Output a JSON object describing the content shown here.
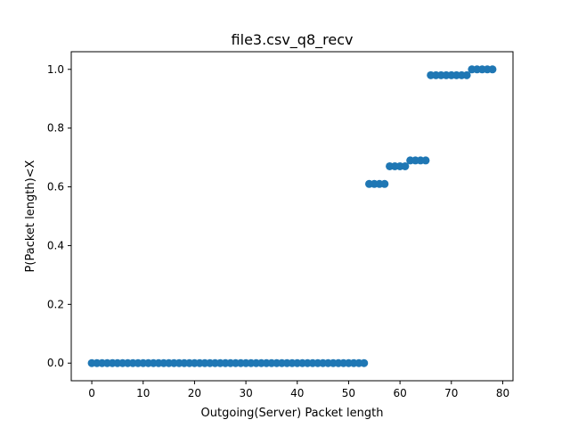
{
  "chart_data": {
    "type": "scatter",
    "title": "file3.csv_q8_recv",
    "xlabel": "Outgoing(Server) Packet length",
    "ylabel": "P(Packet length)<X",
    "xlim": [
      -4,
      82
    ],
    "ylim": [
      -0.06,
      1.06
    ],
    "x_ticks": [
      0,
      10,
      20,
      30,
      40,
      50,
      60,
      70,
      80
    ],
    "x_tick_labels": [
      "0",
      "10",
      "20",
      "30",
      "40",
      "50",
      "60",
      "70",
      "80"
    ],
    "y_ticks": [
      0.0,
      0.2,
      0.4,
      0.6,
      0.8,
      1.0
    ],
    "y_tick_labels": [
      "0.0",
      "0.2",
      "0.4",
      "0.6",
      "0.8",
      "1.0"
    ],
    "grid": false,
    "marker_color": "#1f77b4",
    "series": [
      {
        "x": [
          0,
          1,
          2,
          3,
          4,
          5,
          6,
          7,
          8,
          9,
          10,
          11,
          12,
          13,
          14,
          15,
          16,
          17,
          18,
          19,
          20,
          21,
          22,
          23,
          24,
          25,
          26,
          27,
          28,
          29,
          30,
          31,
          32,
          33,
          34,
          35,
          36,
          37,
          38,
          39,
          40,
          41,
          42,
          43,
          44,
          45,
          46,
          47,
          48,
          49,
          50,
          51,
          52,
          53,
          54,
          55,
          56,
          57,
          58,
          59,
          60,
          61,
          62,
          63,
          64,
          65,
          66,
          67,
          68,
          69,
          70,
          71,
          72,
          73,
          74,
          75,
          76,
          77,
          78
        ],
        "y": [
          0,
          0,
          0,
          0,
          0,
          0,
          0,
          0,
          0,
          0,
          0,
          0,
          0,
          0,
          0,
          0,
          0,
          0,
          0,
          0,
          0,
          0,
          0,
          0,
          0,
          0,
          0,
          0,
          0,
          0,
          0,
          0,
          0,
          0,
          0,
          0,
          0,
          0,
          0,
          0,
          0,
          0,
          0,
          0,
          0,
          0,
          0,
          0,
          0,
          0,
          0,
          0,
          0,
          0,
          0.61,
          0.61,
          0.61,
          0.61,
          0.67,
          0.67,
          0.67,
          0.67,
          0.69,
          0.69,
          0.69,
          0.69,
          0.98,
          0.98,
          0.98,
          0.98,
          0.98,
          0.98,
          0.98,
          0.98,
          1.0,
          1.0,
          1.0,
          1.0,
          1.0
        ]
      }
    ]
  }
}
